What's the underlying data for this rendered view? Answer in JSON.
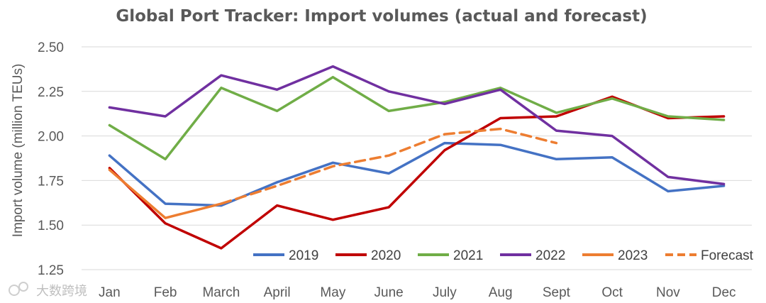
{
  "chart_data": {
    "type": "line",
    "title": "Global Port Tracker: Import volumes (actual and forecast)",
    "xlabel": "",
    "ylabel": "Import volume (million TEUs)",
    "categories": [
      "Jan",
      "Feb",
      "March",
      "April",
      "May",
      "June",
      "July",
      "Aug",
      "Sept",
      "Oct",
      "Nov",
      "Dec"
    ],
    "ylim": [
      1.25,
      2.5
    ],
    "yticks": [
      "1.25",
      "1.50",
      "1.75",
      "2.00",
      "2.25",
      "2.50"
    ],
    "grid": true,
    "legend": "bottom-right",
    "series": [
      {
        "name": "2019",
        "color": "#4472c4",
        "style": "solid",
        "values": [
          1.89,
          1.62,
          1.61,
          1.74,
          1.85,
          1.79,
          1.96,
          1.95,
          1.87,
          1.88,
          1.69,
          1.72
        ]
      },
      {
        "name": "2020",
        "color": "#c00000",
        "style": "solid",
        "values": [
          1.82,
          1.51,
          1.37,
          1.61,
          1.53,
          1.6,
          1.92,
          2.1,
          2.11,
          2.22,
          2.1,
          2.11
        ]
      },
      {
        "name": "2021",
        "color": "#70ad47",
        "style": "solid",
        "values": [
          2.06,
          1.87,
          2.27,
          2.14,
          2.33,
          2.14,
          2.19,
          2.27,
          2.13,
          2.21,
          2.11,
          2.09
        ]
      },
      {
        "name": "2022",
        "color": "#7030a0",
        "style": "solid",
        "values": [
          2.16,
          2.11,
          2.34,
          2.26,
          2.39,
          2.25,
          2.18,
          2.26,
          2.03,
          2.0,
          1.77,
          1.73
        ]
      },
      {
        "name": "2023",
        "color": "#ed7d31",
        "style": "solid",
        "values": [
          1.81,
          1.54,
          1.62,
          null,
          null,
          null,
          null,
          null,
          null,
          null,
          null,
          null
        ]
      },
      {
        "name": "Forecast",
        "color": "#ed7d31",
        "style": "dashed",
        "values": [
          null,
          null,
          1.62,
          1.72,
          1.83,
          1.89,
          2.01,
          2.04,
          1.96,
          null,
          null,
          null
        ]
      }
    ]
  },
  "watermark": {
    "text": "大数跨境"
  }
}
